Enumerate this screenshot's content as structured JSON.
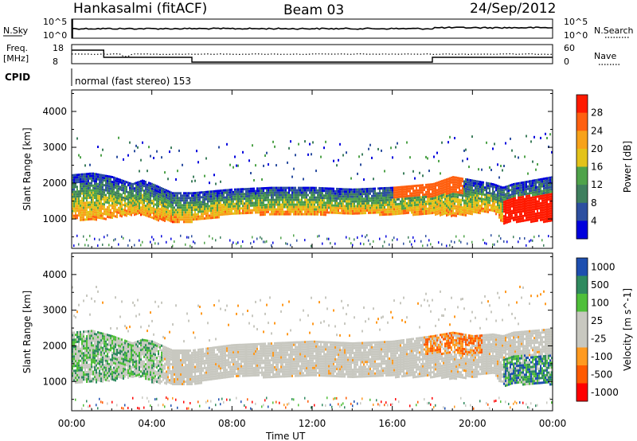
{
  "header": {
    "station": "Hankasalmi (fitACF)",
    "beam": "Beam 03",
    "date": "24/Sep/2012"
  },
  "noise_panel": {
    "left_label": "N.Sky",
    "right_label": "N.Search",
    "left_ticks": [
      "10^5",
      "10^0"
    ],
    "right_ticks": [
      "10^5",
      "10^0"
    ]
  },
  "freq_panel": {
    "left_label_1": "Freq.",
    "left_label_2": "[MHz]",
    "right_label": "Nave",
    "left_ticks": [
      "18",
      "8"
    ],
    "right_ticks": [
      "60",
      "0"
    ]
  },
  "cpid_panel": {
    "label": "CPID",
    "text": "normal (fast stereo) 153"
  },
  "x_axis": {
    "label": "Time UT",
    "ticks": [
      "00:00",
      "04:00",
      "08:00",
      "12:00",
      "16:00",
      "20:00",
      "00:00"
    ]
  },
  "colors": {
    "power_scale": [
      "#0000dd",
      "#2d4fa0",
      "#3f7f5e",
      "#4fa34a",
      "#e3c21a",
      "#f7a21a",
      "#ff6010",
      "#ff1a00"
    ],
    "velocity_scale": [
      "#ff0000",
      "#ff5a00",
      "#ff9a20",
      "#c8c8c0",
      "#c8c8c0",
      "#4fbf3a",
      "#2f8a5f",
      "#1e4fb0"
    ]
  },
  "chart_data": [
    {
      "type": "heatmap",
      "title": "",
      "ylabel": "Slant Range [km]",
      "xlabel": "",
      "ylim": [
        180,
        4600
      ],
      "xlim_hours": [
        0,
        24
      ],
      "yticks": [
        "1000",
        "2000",
        "3000",
        "4000"
      ],
      "colorbar": {
        "label": "Power [dB]",
        "ticks": [
          "4",
          "8",
          "12",
          "16",
          "20",
          "24",
          "28"
        ]
      },
      "band": {
        "hours": [
          0,
          1,
          2,
          3,
          3.5,
          4,
          5,
          6,
          8,
          10,
          12,
          14,
          16,
          18,
          19,
          20,
          21,
          21.5,
          22,
          23,
          24
        ],
        "lower_km": [
          1000,
          1000,
          1050,
          1150,
          1150,
          1000,
          950,
          950,
          1150,
          1150,
          1150,
          1150,
          1150,
          1150,
          1100,
          1150,
          1250,
          900,
          950,
          950,
          950
        ],
        "upper_km": [
          2250,
          2300,
          2200,
          2000,
          2100,
          2000,
          1750,
          1750,
          1850,
          1900,
          1900,
          1850,
          1900,
          2000,
          2200,
          2100,
          2000,
          1900,
          2000,
          2100,
          2200
        ]
      }
    },
    {
      "type": "heatmap",
      "title": "",
      "ylabel": "Slant Range [km]",
      "xlabel": "Time UT",
      "ylim": [
        180,
        4600
      ],
      "xlim_hours": [
        0,
        24
      ],
      "yticks": [
        "1000",
        "2000",
        "3000",
        "4000"
      ],
      "colorbar": {
        "label": "Velocity [m s^-1]",
        "ticks": [
          "1000",
          "500",
          "100",
          "25",
          "-25",
          "-100",
          "-500",
          "-1000"
        ]
      },
      "band": {
        "hours": [
          0,
          1,
          2,
          3,
          3.5,
          4,
          5,
          6,
          8,
          10,
          12,
          14,
          16,
          18,
          19,
          20,
          21,
          21.5,
          22,
          23,
          24
        ],
        "lower_km": [
          1000,
          1000,
          1050,
          1150,
          1150,
          1000,
          950,
          950,
          1150,
          1150,
          1150,
          1150,
          1150,
          1150,
          1100,
          1150,
          1250,
          900,
          950,
          950,
          950
        ],
        "upper_km": [
          2400,
          2450,
          2300,
          2100,
          2200,
          2150,
          1900,
          1900,
          2050,
          2100,
          2150,
          2100,
          2150,
          2300,
          2400,
          2300,
          2350,
          2300,
          2400,
          2450,
          2500
        ]
      }
    }
  ]
}
